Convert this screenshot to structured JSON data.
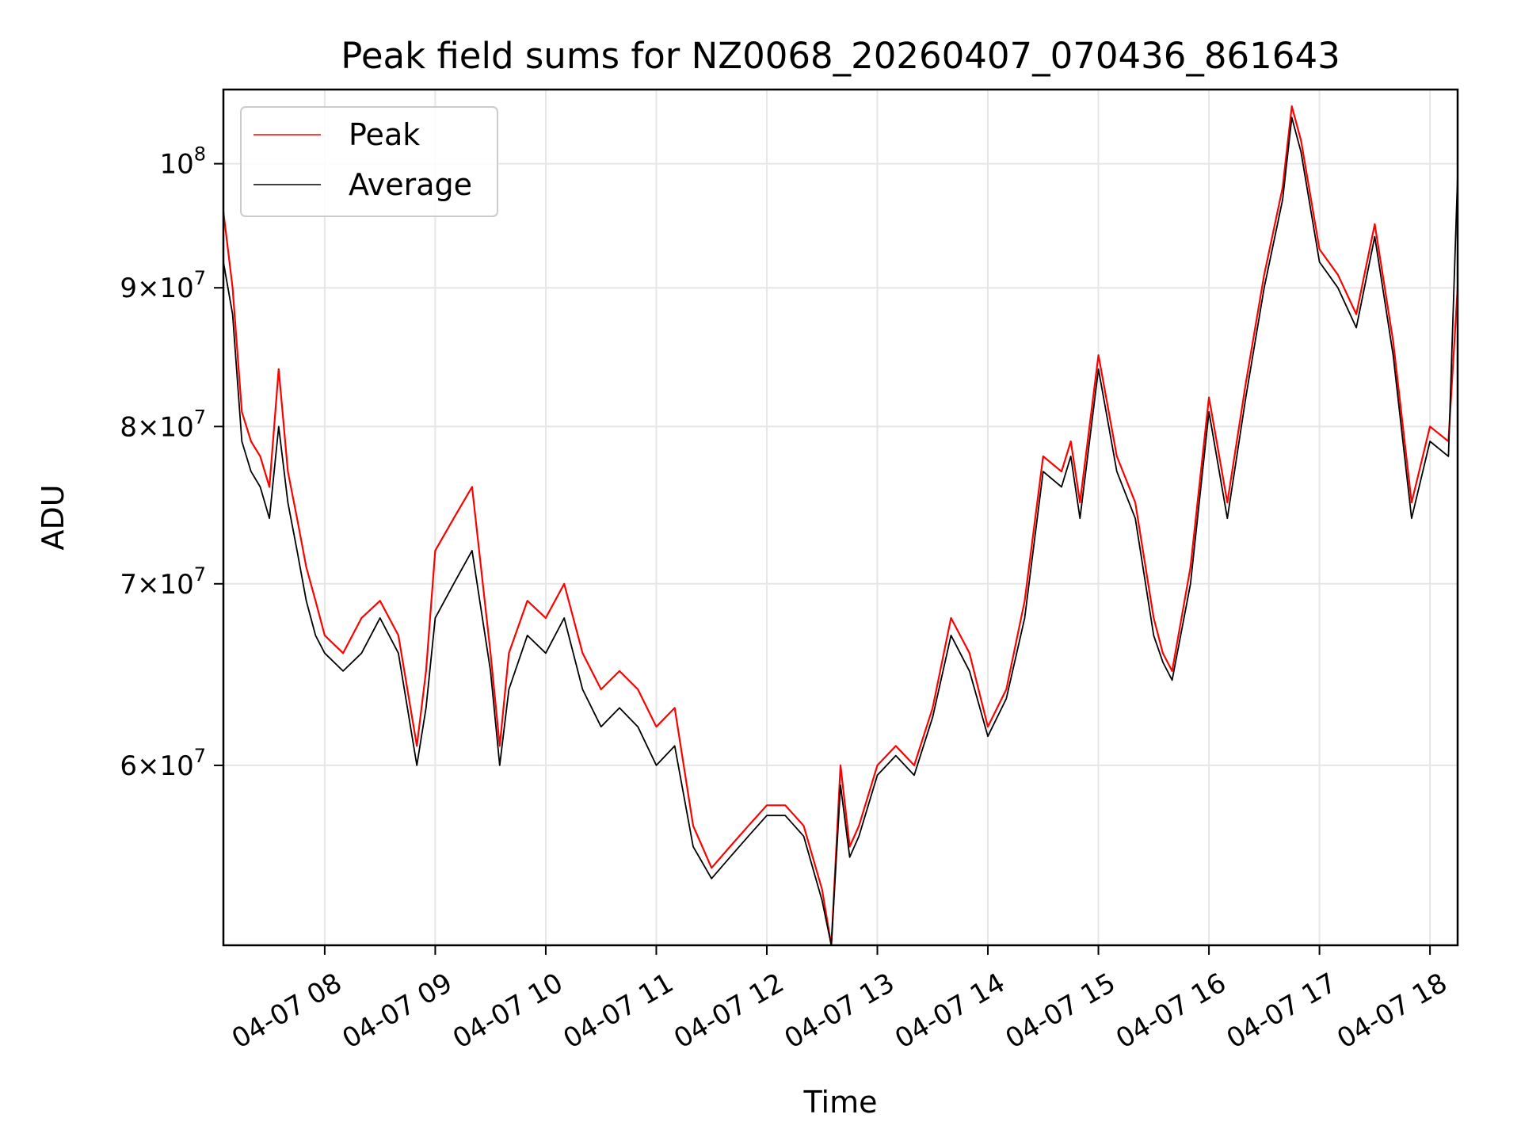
{
  "chart_data": {
    "type": "line",
    "title": "Peak field sums for NZ0068_20260407_070436_861643",
    "xlabel": "Time",
    "ylabel": "ADU",
    "yscale": "log",
    "grid": true,
    "legend_position": "top-left",
    "x_tick_labels": [
      "04-07 08",
      "04-07 09",
      "04-07 10",
      "04-07 11",
      "04-07 12",
      "04-07 13",
      "04-07 14",
      "04-07 15",
      "04-07 16",
      "04-07 17",
      "04-07 18"
    ],
    "y_ticks": [
      {
        "mantissa": "6",
        "base": "10",
        "exp": "7"
      },
      {
        "mantissa": "7",
        "base": "10",
        "exp": "7"
      },
      {
        "mantissa": "8",
        "base": "10",
        "exp": "7"
      },
      {
        "mantissa": "9",
        "base": "10",
        "exp": "7"
      },
      {
        "mantissa": "",
        "base": "10",
        "exp": "8"
      }
    ],
    "x_range": [
      "04-07 07:05",
      "04-07 18:15"
    ],
    "ylim": [
      51500000,
      106500000
    ],
    "series": [
      {
        "name": "Peak",
        "color": "#ff0000",
        "x": [
          "07:05",
          "07:10",
          "07:15",
          "07:20",
          "07:25",
          "07:30",
          "07:35",
          "07:40",
          "07:45",
          "07:50",
          "07:55",
          "08:00",
          "08:10",
          "08:20",
          "08:30",
          "08:40",
          "08:50",
          "08:55",
          "09:00",
          "09:10",
          "09:20",
          "09:30",
          "09:35",
          "09:40",
          "09:50",
          "10:00",
          "10:10",
          "10:20",
          "10:30",
          "10:40",
          "10:50",
          "11:00",
          "11:10",
          "11:20",
          "11:30",
          "11:40",
          "11:50",
          "12:00",
          "12:10",
          "12:20",
          "12:30",
          "12:35",
          "12:40",
          "12:45",
          "12:50",
          "13:00",
          "13:10",
          "13:20",
          "13:30",
          "13:40",
          "13:50",
          "14:00",
          "14:10",
          "14:20",
          "14:30",
          "14:40",
          "14:45",
          "14:50",
          "15:00",
          "15:10",
          "15:20",
          "15:30",
          "15:35",
          "15:40",
          "15:50",
          "16:00",
          "16:10",
          "16:20",
          "16:30",
          "16:40",
          "16:45",
          "16:50",
          "17:00",
          "17:10",
          "17:20",
          "17:30",
          "17:40",
          "17:50",
          "18:00",
          "18:10",
          "18:15"
        ],
        "values": [
          96000000,
          90000000,
          81000000,
          79000000,
          78000000,
          76000000,
          84000000,
          77000000,
          74000000,
          71000000,
          69000000,
          67000000,
          66000000,
          68000000,
          69000000,
          67000000,
          61000000,
          65000000,
          72000000,
          74000000,
          76000000,
          66000000,
          61000000,
          66000000,
          69000000,
          68000000,
          70000000,
          66000000,
          64000000,
          65000000,
          64000000,
          62000000,
          63000000,
          57000000,
          55000000,
          56000000,
          57000000,
          58000000,
          58000000,
          57000000,
          54000000,
          51500000,
          60000000,
          56000000,
          57000000,
          60000000,
          61000000,
          60000000,
          63000000,
          68000000,
          66000000,
          62000000,
          64000000,
          69000000,
          78000000,
          77000000,
          79000000,
          75000000,
          85000000,
          78000000,
          75000000,
          68000000,
          66000000,
          65000000,
          71000000,
          82000000,
          75000000,
          83000000,
          91000000,
          98000000,
          105000000,
          102000000,
          93000000,
          91000000,
          88000000,
          95000000,
          86000000,
          75000000,
          80000000,
          79000000,
          90000000
        ]
      },
      {
        "name": "Average",
        "color": "#000000",
        "x": [
          "07:05",
          "07:10",
          "07:15",
          "07:20",
          "07:25",
          "07:30",
          "07:35",
          "07:40",
          "07:45",
          "07:50",
          "07:55",
          "08:00",
          "08:10",
          "08:20",
          "08:30",
          "08:40",
          "08:50",
          "08:55",
          "09:00",
          "09:10",
          "09:20",
          "09:30",
          "09:35",
          "09:40",
          "09:50",
          "10:00",
          "10:10",
          "10:20",
          "10:30",
          "10:40",
          "10:50",
          "11:00",
          "11:10",
          "11:20",
          "11:30",
          "11:40",
          "11:50",
          "12:00",
          "12:10",
          "12:20",
          "12:30",
          "12:35",
          "12:40",
          "12:45",
          "12:50",
          "13:00",
          "13:10",
          "13:20",
          "13:30",
          "13:40",
          "13:50",
          "14:00",
          "14:10",
          "14:20",
          "14:30",
          "14:40",
          "14:45",
          "14:50",
          "15:00",
          "15:10",
          "15:20",
          "15:30",
          "15:35",
          "15:40",
          "15:50",
          "16:00",
          "16:10",
          "16:20",
          "16:30",
          "16:40",
          "16:45",
          "16:50",
          "17:00",
          "17:10",
          "17:20",
          "17:30",
          "17:40",
          "17:50",
          "18:00",
          "18:10",
          "18:15"
        ],
        "values": [
          92000000,
          88000000,
          79000000,
          77000000,
          76000000,
          74000000,
          80000000,
          75000000,
          72000000,
          69000000,
          67000000,
          66000000,
          65000000,
          66000000,
          68000000,
          66000000,
          60000000,
          63000000,
          68000000,
          70000000,
          72000000,
          65000000,
          60000000,
          64000000,
          67000000,
          66000000,
          68000000,
          64000000,
          62000000,
          63000000,
          62000000,
          60000000,
          61000000,
          56000000,
          54500000,
          55500000,
          56500000,
          57500000,
          57500000,
          56500000,
          53500000,
          51500000,
          59000000,
          55500000,
          56500000,
          59500000,
          60500000,
          59500000,
          62500000,
          67000000,
          65000000,
          61500000,
          63500000,
          68000000,
          77000000,
          76000000,
          78000000,
          74000000,
          84000000,
          77000000,
          74000000,
          67000000,
          65500000,
          64500000,
          70000000,
          81000000,
          74000000,
          82000000,
          90000000,
          97000000,
          104000000,
          101000000,
          92000000,
          90000000,
          87000000,
          94000000,
          85000000,
          74000000,
          79000000,
          78000000,
          99000000
        ]
      }
    ]
  }
}
